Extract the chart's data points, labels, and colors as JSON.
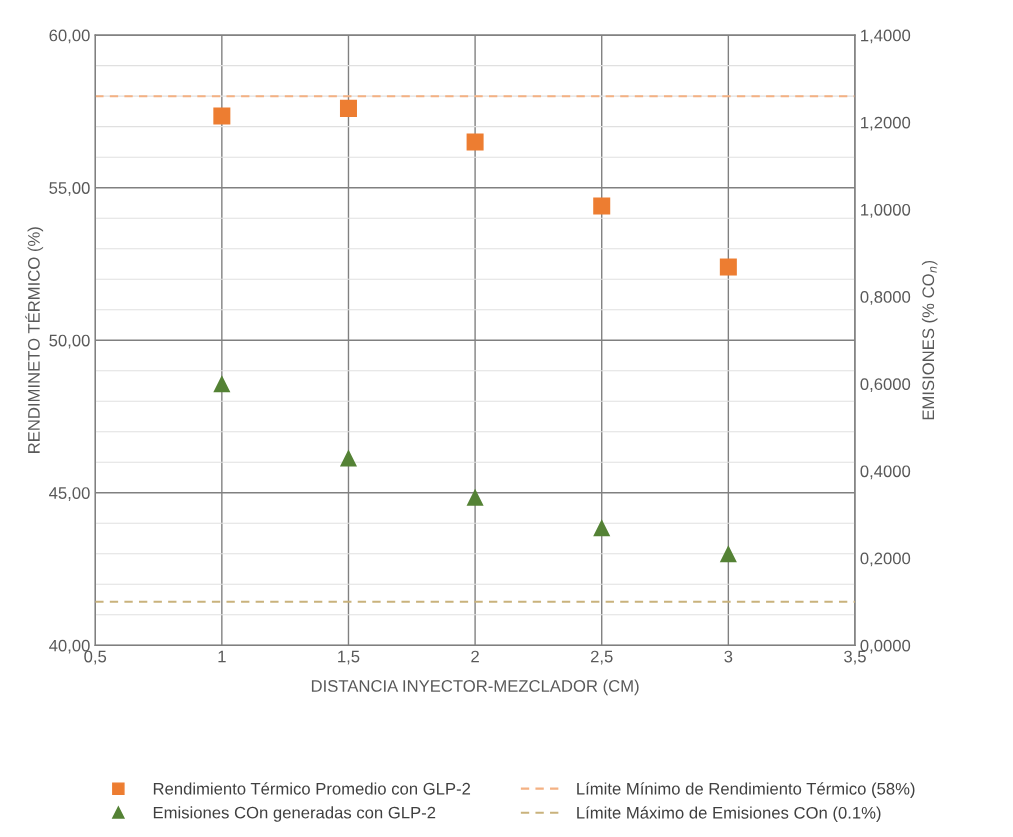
{
  "chart_data": {
    "type": "scatter",
    "xlabel": "DISTANCIA INYECTOR-MEZCLADOR (CM)",
    "ylabel": "RENDIMINETO TÉRMICO (%)",
    "y2label": "EMISIONES (% CO$_{n}$)",
    "x": [
      1,
      1.5,
      2,
      2.5,
      3
    ],
    "series": [
      {
        "name": "Rendimiento Térmico Promedio con GLP-2",
        "color": "#ed7d31",
        "marker": "square",
        "values": [
          57.35,
          57.6,
          56.5,
          54.4,
          52.4
        ]
      },
      {
        "name": "Emisiones COn generadas con GLP-2",
        "color": "#548235",
        "marker": "triangle",
        "axis": "y2",
        "values": [
          0.6,
          0.43,
          0.34,
          0.27,
          0.21
        ]
      }
    ],
    "ref_lines": [
      {
        "axis": "y",
        "value": 58,
        "label": "Límite Mínimo de Rendimiento Térmico (58%)",
        "color": "#f4b183",
        "line_style": "dashed"
      },
      {
        "axis": "y2",
        "value": 0.1,
        "label": "Límite Máximo de Emisiones COn (0.1%)",
        "color": "#c9b27c",
        "line_style": "dashed"
      }
    ],
    "xlim": [
      0.5,
      3.5
    ],
    "xticks": [
      {
        "value": 0.5,
        "label": "0,5"
      },
      1,
      {
        "value": 1.5,
        "label": "1,5"
      },
      2,
      {
        "value": 2.5,
        "label": "2,5"
      },
      3,
      {
        "value": 3.5,
        "label": "3,5"
      }
    ],
    "ylim": [
      40,
      60
    ],
    "yticks": [
      {
        "value": 40,
        "label": "40,00"
      },
      {
        "value": 45,
        "label": "45,00"
      },
      {
        "value": 50,
        "label": "50,00"
      },
      {
        "value": 55,
        "label": "55,00"
      },
      {
        "value": 60,
        "label": "60,00"
      }
    ],
    "y2lim": [
      0,
      1.4
    ],
    "y2ticks": [
      {
        "value": 0,
        "label": "0,0000"
      },
      {
        "value": 0.2,
        "label": "0,2000"
      },
      {
        "value": 0.4,
        "label": "0,4000"
      },
      {
        "value": 0.6,
        "label": "0,6000"
      },
      {
        "value": 0.8,
        "label": "0,8000"
      },
      {
        "value": 1.0,
        "label": "1,0000"
      },
      {
        "value": 1.2,
        "label": "1,2000"
      },
      {
        "value": 1.4,
        "label": "1,4000"
      }
    ],
    "grid": true,
    "legend": "bottom"
  }
}
